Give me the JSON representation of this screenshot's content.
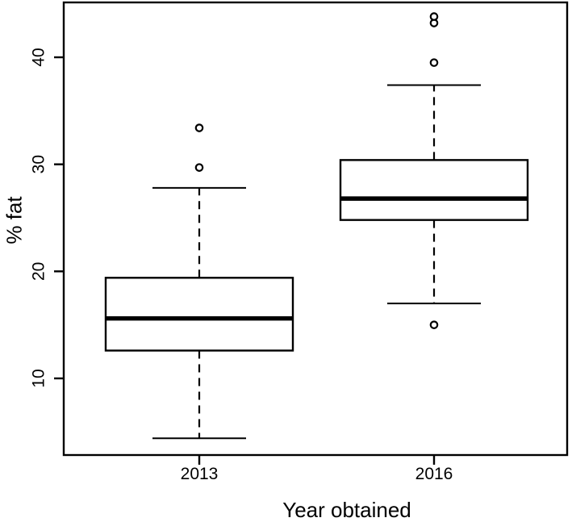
{
  "figure": {
    "background": "#ffffff",
    "ink_color": "#000000"
  },
  "chart_data": {
    "type": "boxplot",
    "title": "",
    "xlabel": "Year obtained",
    "ylabel": "% fat",
    "categories": [
      "2013",
      "2016"
    ],
    "y_ticks": [
      "10",
      "20",
      "30",
      "40"
    ],
    "ylim": [
      2.9,
      45.1
    ],
    "grid": false,
    "legend": "none",
    "series": [
      {
        "name": "2013",
        "whisker_low": 4.4,
        "q1": 12.6,
        "median": 15.6,
        "q3": 19.4,
        "whisker_high": 27.8,
        "outliers": [
          29.7,
          33.4
        ]
      },
      {
        "name": "2016",
        "whisker_low": 17.0,
        "q1": 24.8,
        "median": 26.8,
        "q3": 30.4,
        "whisker_high": 37.4,
        "outliers": [
          15.0,
          39.5,
          43.2,
          43.8
        ]
      }
    ]
  }
}
